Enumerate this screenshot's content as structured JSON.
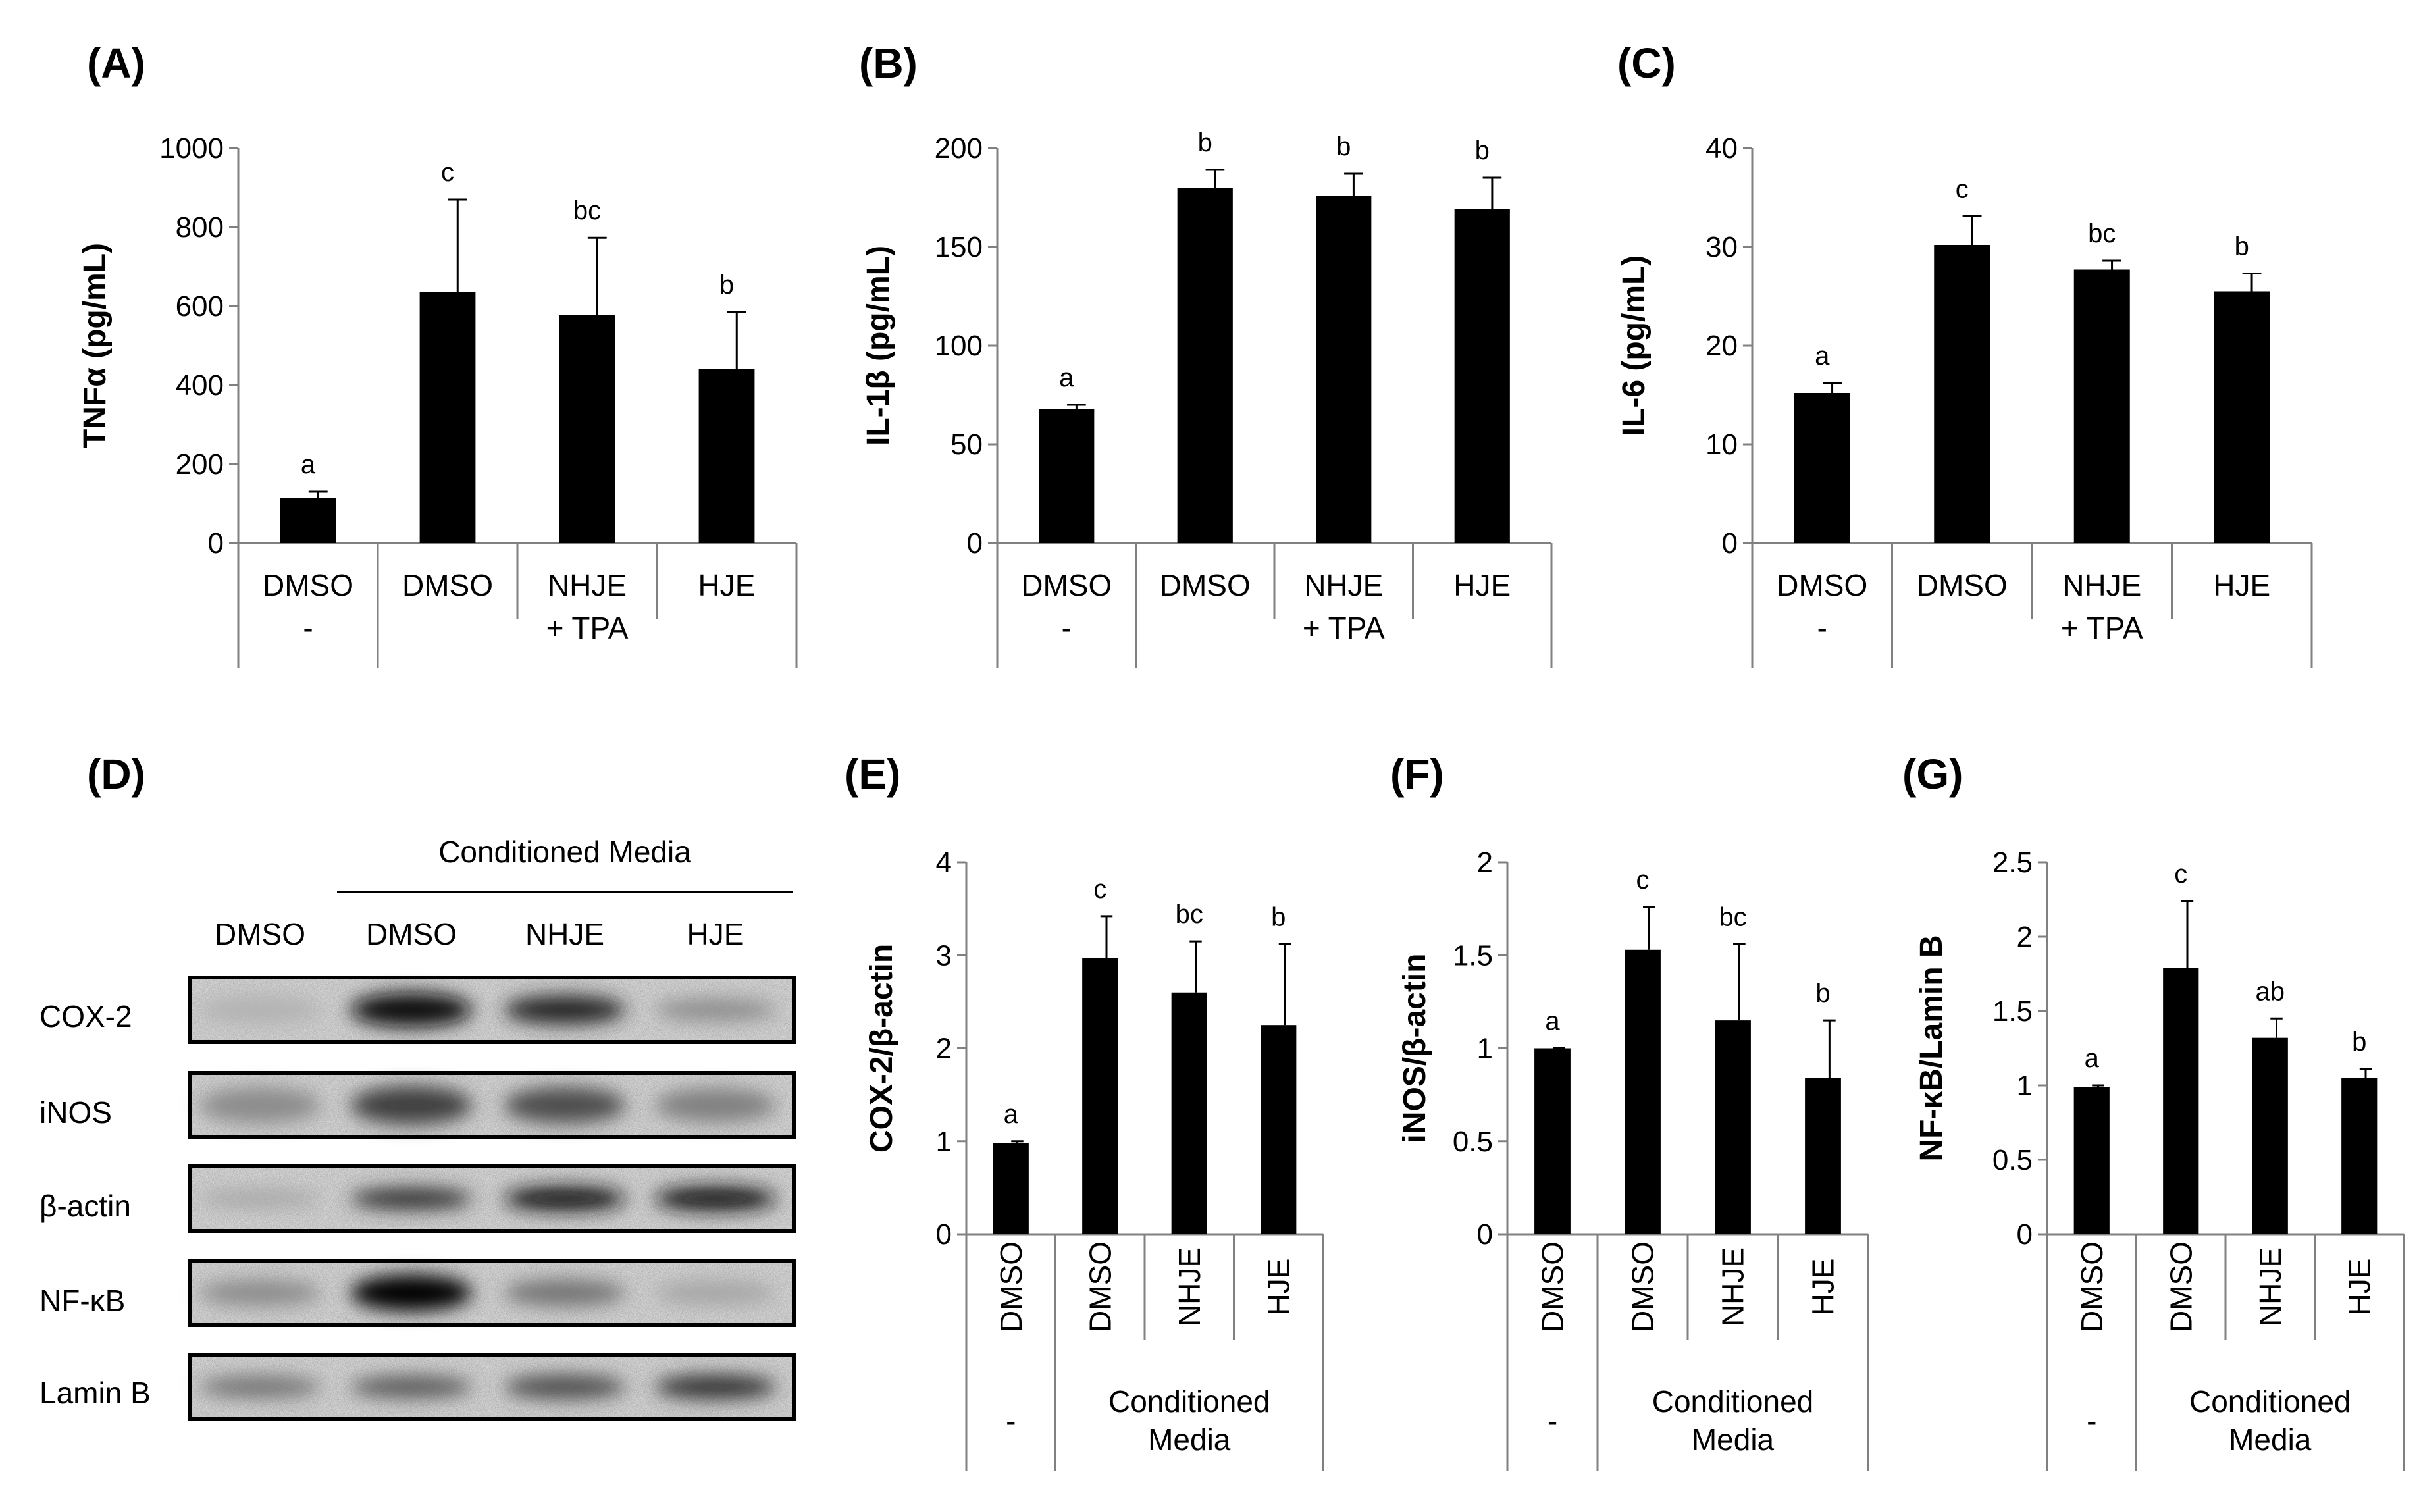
{
  "figure": {
    "panels": {
      "A": "(A)",
      "B": "(B)",
      "C": "(C)",
      "D": "(D)",
      "E": "(E)",
      "F": "(F)",
      "G": "(G)"
    }
  },
  "western_blot": {
    "header": "Conditioned Media",
    "lane_labels": [
      "DMSO",
      "DMSO",
      "NHJE",
      "HJE"
    ],
    "rows": [
      {
        "label": "COX-2",
        "intensity": [
          0.3,
          0.95,
          0.85,
          0.45
        ],
        "thickness": [
          0.6,
          0.7,
          0.6,
          0.45
        ]
      },
      {
        "label": "iNOS",
        "intensity": [
          0.45,
          0.75,
          0.7,
          0.5
        ],
        "thickness": [
          0.75,
          0.8,
          0.75,
          0.7
        ]
      },
      {
        "label": "β-actin",
        "intensity": [
          0.35,
          0.8,
          0.9,
          0.9
        ],
        "thickness": [
          0.35,
          0.45,
          0.5,
          0.5
        ]
      },
      {
        "label": "NF-κB",
        "intensity": [
          0.45,
          1.0,
          0.55,
          0.35
        ],
        "thickness": [
          0.55,
          0.75,
          0.55,
          0.5
        ]
      },
      {
        "label": "Lamin B",
        "intensity": [
          0.55,
          0.65,
          0.7,
          0.8
        ],
        "thickness": [
          0.45,
          0.45,
          0.5,
          0.5
        ]
      }
    ]
  },
  "chart_data": [
    {
      "panel": "A",
      "type": "bar",
      "ylabel": "TNFα (pg/mL)",
      "ylim": [
        0,
        1000
      ],
      "yticks": [
        "0",
        "200",
        "400",
        "600",
        "800",
        "1000"
      ],
      "categories": [
        "DMSO",
        "DMSO",
        "NHJE",
        "HJE"
      ],
      "values": [
        115,
        635,
        578,
        440
      ],
      "errors": [
        15,
        235,
        195,
        145
      ],
      "letters": [
        "a",
        "c",
        "bc",
        "b"
      ],
      "groups": [
        {
          "label": "-",
          "span": [
            0,
            0
          ]
        },
        {
          "label": "+ TPA",
          "span": [
            1,
            3
          ]
        }
      ],
      "rotated": false
    },
    {
      "panel": "B",
      "type": "bar",
      "ylabel": "IL-1β (pg/mL)",
      "ylim": [
        0,
        200
      ],
      "yticks": [
        "0",
        "50",
        "100",
        "150",
        "200"
      ],
      "categories": [
        "DMSO",
        "DMSO",
        "NHJE",
        "HJE"
      ],
      "values": [
        68,
        180,
        176,
        169
      ],
      "errors": [
        2,
        9,
        11,
        16
      ],
      "letters": [
        "a",
        "b",
        "b",
        "b"
      ],
      "groups": [
        {
          "label": "-",
          "span": [
            0,
            0
          ]
        },
        {
          "label": "+ TPA",
          "span": [
            1,
            3
          ]
        }
      ],
      "rotated": false
    },
    {
      "panel": "C",
      "type": "bar",
      "ylabel": "IL-6 (pg/mL)",
      "ylim": [
        0,
        40
      ],
      "yticks": [
        "0",
        "10",
        "20",
        "30",
        "40"
      ],
      "categories": [
        "DMSO",
        "DMSO",
        "NHJE",
        "HJE"
      ],
      "values": [
        15.2,
        30.2,
        27.7,
        25.5
      ],
      "errors": [
        1.0,
        2.9,
        0.9,
        1.8
      ],
      "letters": [
        "a",
        "c",
        "bc",
        "b"
      ],
      "groups": [
        {
          "label": "-",
          "span": [
            0,
            0
          ]
        },
        {
          "label": "+ TPA",
          "span": [
            1,
            3
          ]
        }
      ],
      "rotated": false
    },
    {
      "panel": "E",
      "type": "bar",
      "ylabel": "COX-2/β-actin",
      "ylim": [
        0,
        4
      ],
      "yticks": [
        "0",
        "1",
        "2",
        "3",
        "4"
      ],
      "categories": [
        "DMSO",
        "DMSO",
        "NHJE",
        "HJE"
      ],
      "values": [
        0.98,
        2.97,
        2.6,
        2.25
      ],
      "errors": [
        0.02,
        0.45,
        0.55,
        0.87
      ],
      "letters": [
        "a",
        "c",
        "bc",
        "b"
      ],
      "groups": [
        {
          "label": "-",
          "span": [
            0,
            0
          ]
        },
        {
          "label": "Conditioned\nMedia",
          "span": [
            1,
            3
          ]
        }
      ],
      "rotated": true
    },
    {
      "panel": "F",
      "type": "bar",
      "ylabel": "iNOS/β-actin",
      "ylim": [
        0,
        2
      ],
      "yticks": [
        "0",
        "0.5",
        "1",
        "1.5",
        "2"
      ],
      "categories": [
        "DMSO",
        "DMSO",
        "NHJE",
        "HJE"
      ],
      "values": [
        1.0,
        1.53,
        1.15,
        0.84
      ],
      "errors": [
        0.0,
        0.23,
        0.41,
        0.31
      ],
      "letters": [
        "a",
        "c",
        "bc",
        "b"
      ],
      "groups": [
        {
          "label": "-",
          "span": [
            0,
            0
          ]
        },
        {
          "label": "Conditioned\nMedia",
          "span": [
            1,
            3
          ]
        }
      ],
      "rotated": true
    },
    {
      "panel": "G",
      "type": "bar",
      "ylabel": "NF-κB/Lamin B",
      "ylim": [
        0,
        2.5
      ],
      "yticks": [
        "0",
        "0.5",
        "1",
        "1.5",
        "2",
        "2.5"
      ],
      "categories": [
        "DMSO",
        "DMSO",
        "NHJE",
        "HJE"
      ],
      "values": [
        0.99,
        1.79,
        1.32,
        1.05
      ],
      "errors": [
        0.01,
        0.45,
        0.13,
        0.06
      ],
      "letters": [
        "a",
        "c",
        "ab",
        "b"
      ],
      "groups": [
        {
          "label": "-",
          "span": [
            0,
            0
          ]
        },
        {
          "label": "Conditioned\nMedia",
          "span": [
            1,
            3
          ]
        }
      ],
      "rotated": true
    }
  ]
}
